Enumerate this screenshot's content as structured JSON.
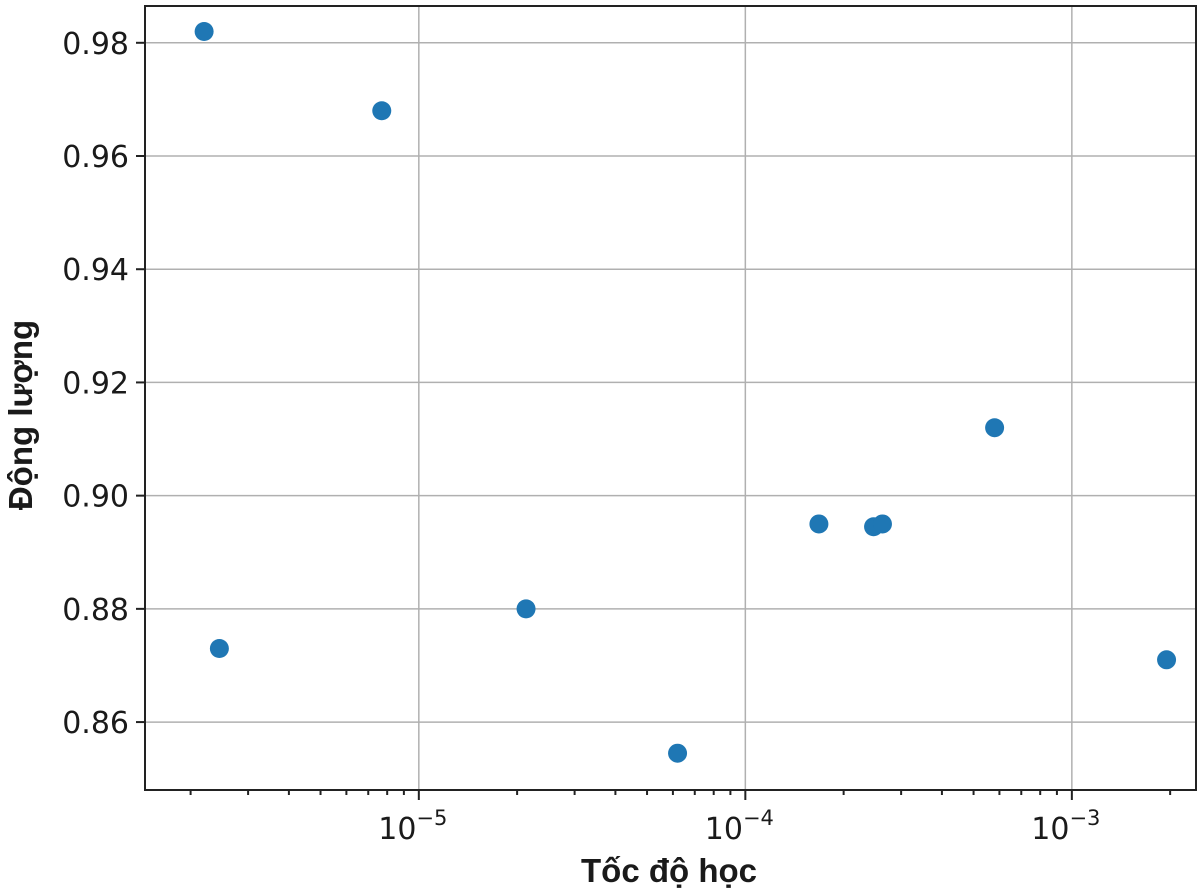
{
  "chart_data": {
    "type": "scatter",
    "title": "",
    "xlabel": "Tốc độ học",
    "ylabel": "Động lượng",
    "xscale": "log",
    "xlim": [
      1.45e-06,
      0.0024
    ],
    "ylim": [
      0.848,
      0.9865
    ],
    "grid": true,
    "point_color": "#1f77b4",
    "x_ticks": [
      {
        "value": 1e-05,
        "base": "10",
        "exp": "−5"
      },
      {
        "value": 0.0001,
        "base": "10",
        "exp": "−4"
      },
      {
        "value": 0.001,
        "base": "10",
        "exp": "−3"
      }
    ],
    "y_ticks": [
      {
        "value": 0.86,
        "label": "0.86"
      },
      {
        "value": 0.88,
        "label": "0.88"
      },
      {
        "value": 0.9,
        "label": "0.90"
      },
      {
        "value": 0.92,
        "label": "0.92"
      },
      {
        "value": 0.94,
        "label": "0.94"
      },
      {
        "value": 0.96,
        "label": "0.96"
      },
      {
        "value": 0.98,
        "label": "0.98"
      }
    ],
    "points": [
      {
        "x": 2.2e-06,
        "y": 0.982
      },
      {
        "x": 2.45e-06,
        "y": 0.873
      },
      {
        "x": 7.7e-06,
        "y": 0.968
      },
      {
        "x": 2.13e-05,
        "y": 0.88
      },
      {
        "x": 6.2e-05,
        "y": 0.8545
      },
      {
        "x": 0.000168,
        "y": 0.895
      },
      {
        "x": 0.000247,
        "y": 0.8945
      },
      {
        "x": 0.000263,
        "y": 0.895
      },
      {
        "x": 0.00058,
        "y": 0.912
      },
      {
        "x": 0.00195,
        "y": 0.871
      }
    ]
  }
}
